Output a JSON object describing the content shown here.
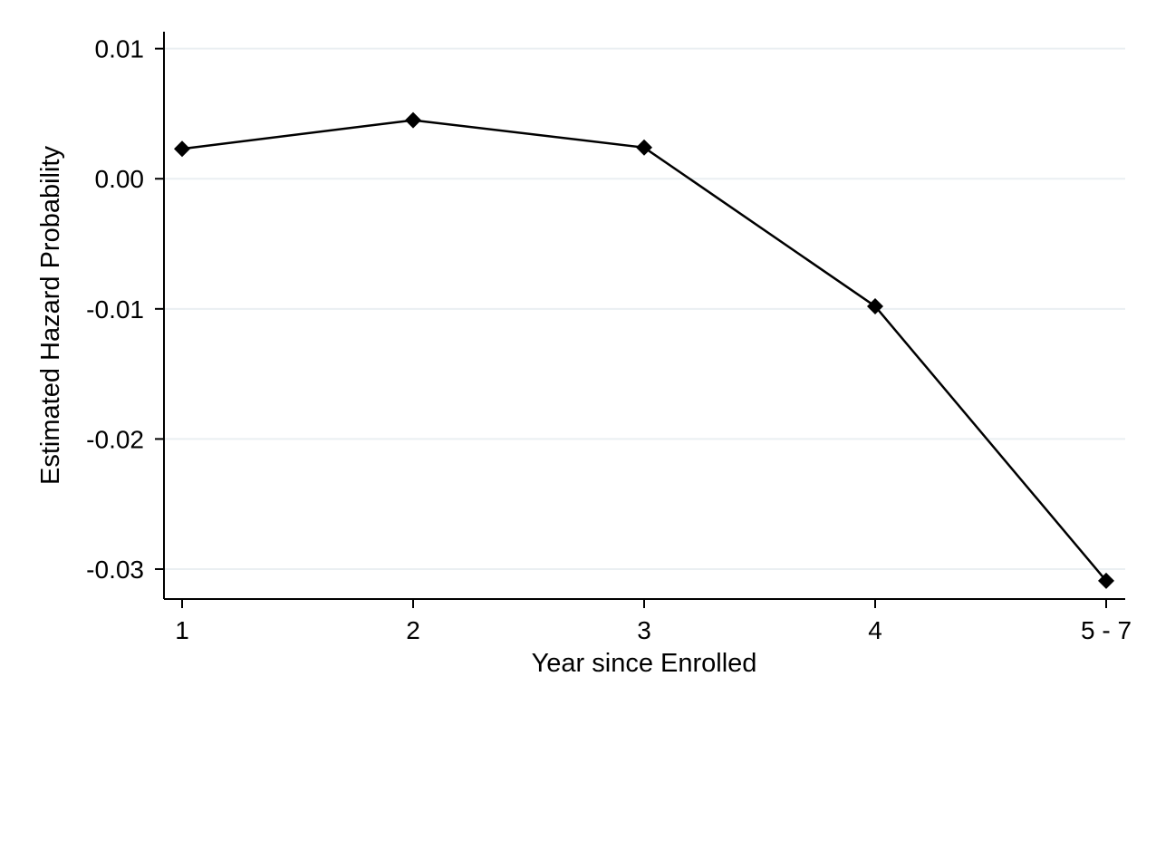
{
  "chart_data": {
    "type": "line",
    "title": "",
    "xlabel": "Year since Enrolled",
    "ylabel": "Estimated Hazard Probability",
    "categories": [
      "1",
      "2",
      "3",
      "4",
      "5 - 7"
    ],
    "series": [
      {
        "values": [
          0.0023,
          0.0045,
          0.0024,
          -0.0098,
          -0.0309
        ]
      }
    ],
    "y_ticks": [
      {
        "value": 0.01,
        "label": "0.01"
      },
      {
        "value": 0.0,
        "label": "0.00"
      },
      {
        "value": -0.01,
        "label": "-0.01"
      },
      {
        "value": -0.02,
        "label": "-0.02"
      },
      {
        "value": -0.03,
        "label": "-0.03"
      }
    ],
    "ylim": [
      -0.0323,
      0.0113
    ],
    "grid": "horizontal",
    "legend": "none",
    "marker": "diamond",
    "colors": {
      "line": "#000000",
      "marker": "#000000",
      "grid": "#eaeff2",
      "axis": "#000000"
    }
  }
}
